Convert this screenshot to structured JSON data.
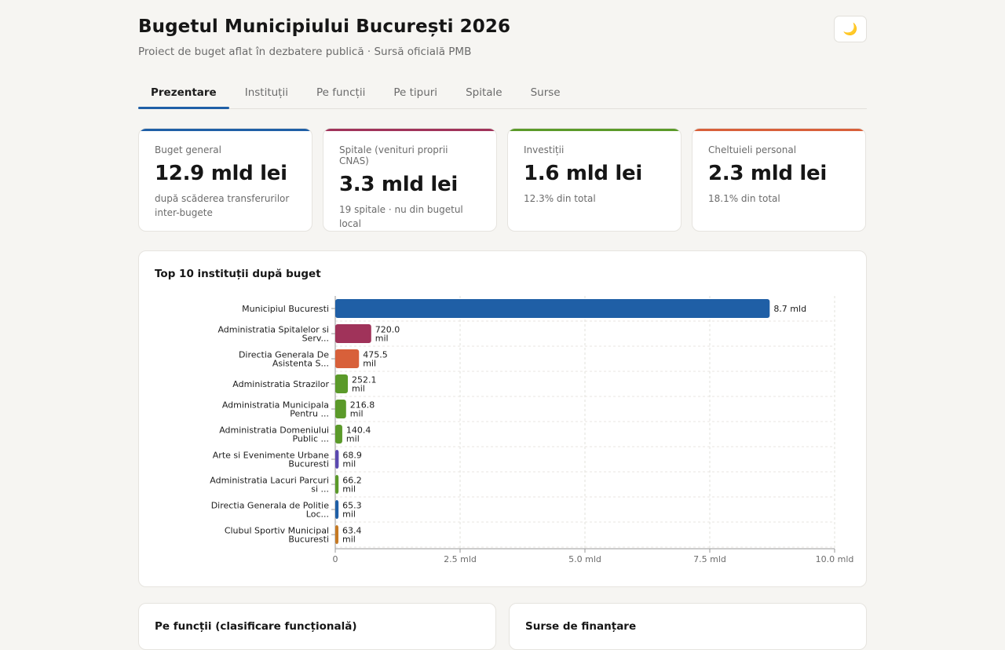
{
  "header": {
    "title": "Bugetul Municipiului București 2026",
    "subtitle": "Proiect de buget aflat în dezbatere publică · Sursă oficială PMB",
    "theme_icon": "🌙"
  },
  "tabs": [
    {
      "label": "Prezentare",
      "active": true
    },
    {
      "label": "Instituții",
      "active": false
    },
    {
      "label": "Pe funcții",
      "active": false
    },
    {
      "label": "Pe tipuri",
      "active": false
    },
    {
      "label": "Spitale",
      "active": false
    },
    {
      "label": "Surse",
      "active": false
    }
  ],
  "kpis": [
    {
      "label": "Buget general",
      "value": "12.9 mld lei",
      "note": "după scăderea transferurilor inter-bugete",
      "color": "#1f5fa6"
    },
    {
      "label": "Spitale (venituri proprii CNAS)",
      "value": "3.3 mld lei",
      "note": "19 spitale · nu din bugetul local",
      "color": "#a0335a"
    },
    {
      "label": "Investiții",
      "value": "1.6 mld lei",
      "note": "12.3% din total",
      "color": "#5b9a2a"
    },
    {
      "label": "Cheltuieli personal",
      "value": "2.3 mld lei",
      "note": "18.1% din total",
      "color": "#d8603a"
    }
  ],
  "chart_card": {
    "title": "Top 10 instituții după buget"
  },
  "chart_data": {
    "type": "bar",
    "orientation": "horizontal",
    "xlim": [
      0,
      10000
    ],
    "ticks": [
      {
        "value": 0,
        "label": "0"
      },
      {
        "value": 2500,
        "label": "2.5 mld"
      },
      {
        "value": 5000,
        "label": "5.0 mld"
      },
      {
        "value": 7500,
        "label": "7.5 mld"
      },
      {
        "value": 10000,
        "label": "10.0 mld"
      }
    ],
    "grid": true,
    "bars": [
      {
        "category": [
          "Municipiul Bucuresti"
        ],
        "value": 8700,
        "label": [
          "8.7 mld"
        ],
        "color": "#1f5fa6"
      },
      {
        "category": [
          "Administratia Spitalelor si",
          "Serv..."
        ],
        "value": 720.0,
        "label": [
          "720.0",
          "mil"
        ],
        "color": "#a0335a"
      },
      {
        "category": [
          "Directia Generala De",
          "Asistenta S..."
        ],
        "value": 475.5,
        "label": [
          "475.5",
          "mil"
        ],
        "color": "#d8603a"
      },
      {
        "category": [
          "Administratia Strazilor"
        ],
        "value": 252.1,
        "label": [
          "252.1",
          "mil"
        ],
        "color": "#5b9a2a"
      },
      {
        "category": [
          "Administratia Municipala",
          "Pentru ..."
        ],
        "value": 216.8,
        "label": [
          "216.8",
          "mil"
        ],
        "color": "#5b9a2a"
      },
      {
        "category": [
          "Administratia Domeniului",
          "Public ..."
        ],
        "value": 140.4,
        "label": [
          "140.4",
          "mil"
        ],
        "color": "#5b9a2a"
      },
      {
        "category": [
          "Arte si Evenimente Urbane",
          "Bucuresti"
        ],
        "value": 68.9,
        "label": [
          "68.9",
          "mil"
        ],
        "color": "#5b49b0"
      },
      {
        "category": [
          "Administratia Lacuri Parcuri",
          "si ..."
        ],
        "value": 66.2,
        "label": [
          "66.2",
          "mil"
        ],
        "color": "#5b9a2a"
      },
      {
        "category": [
          "Directia Generala de Politie",
          "Loc..."
        ],
        "value": 65.3,
        "label": [
          "65.3",
          "mil"
        ],
        "color": "#1f5fa6"
      },
      {
        "category": [
          "Clubul Sportiv Municipal",
          "Bucuresti"
        ],
        "value": 63.4,
        "label": [
          "63.4",
          "mil"
        ],
        "color": "#c67a24"
      }
    ]
  },
  "bottom_cards": [
    {
      "title": "Pe funcții (clasificare funcțională)"
    },
    {
      "title": "Surse de finanțare"
    }
  ]
}
